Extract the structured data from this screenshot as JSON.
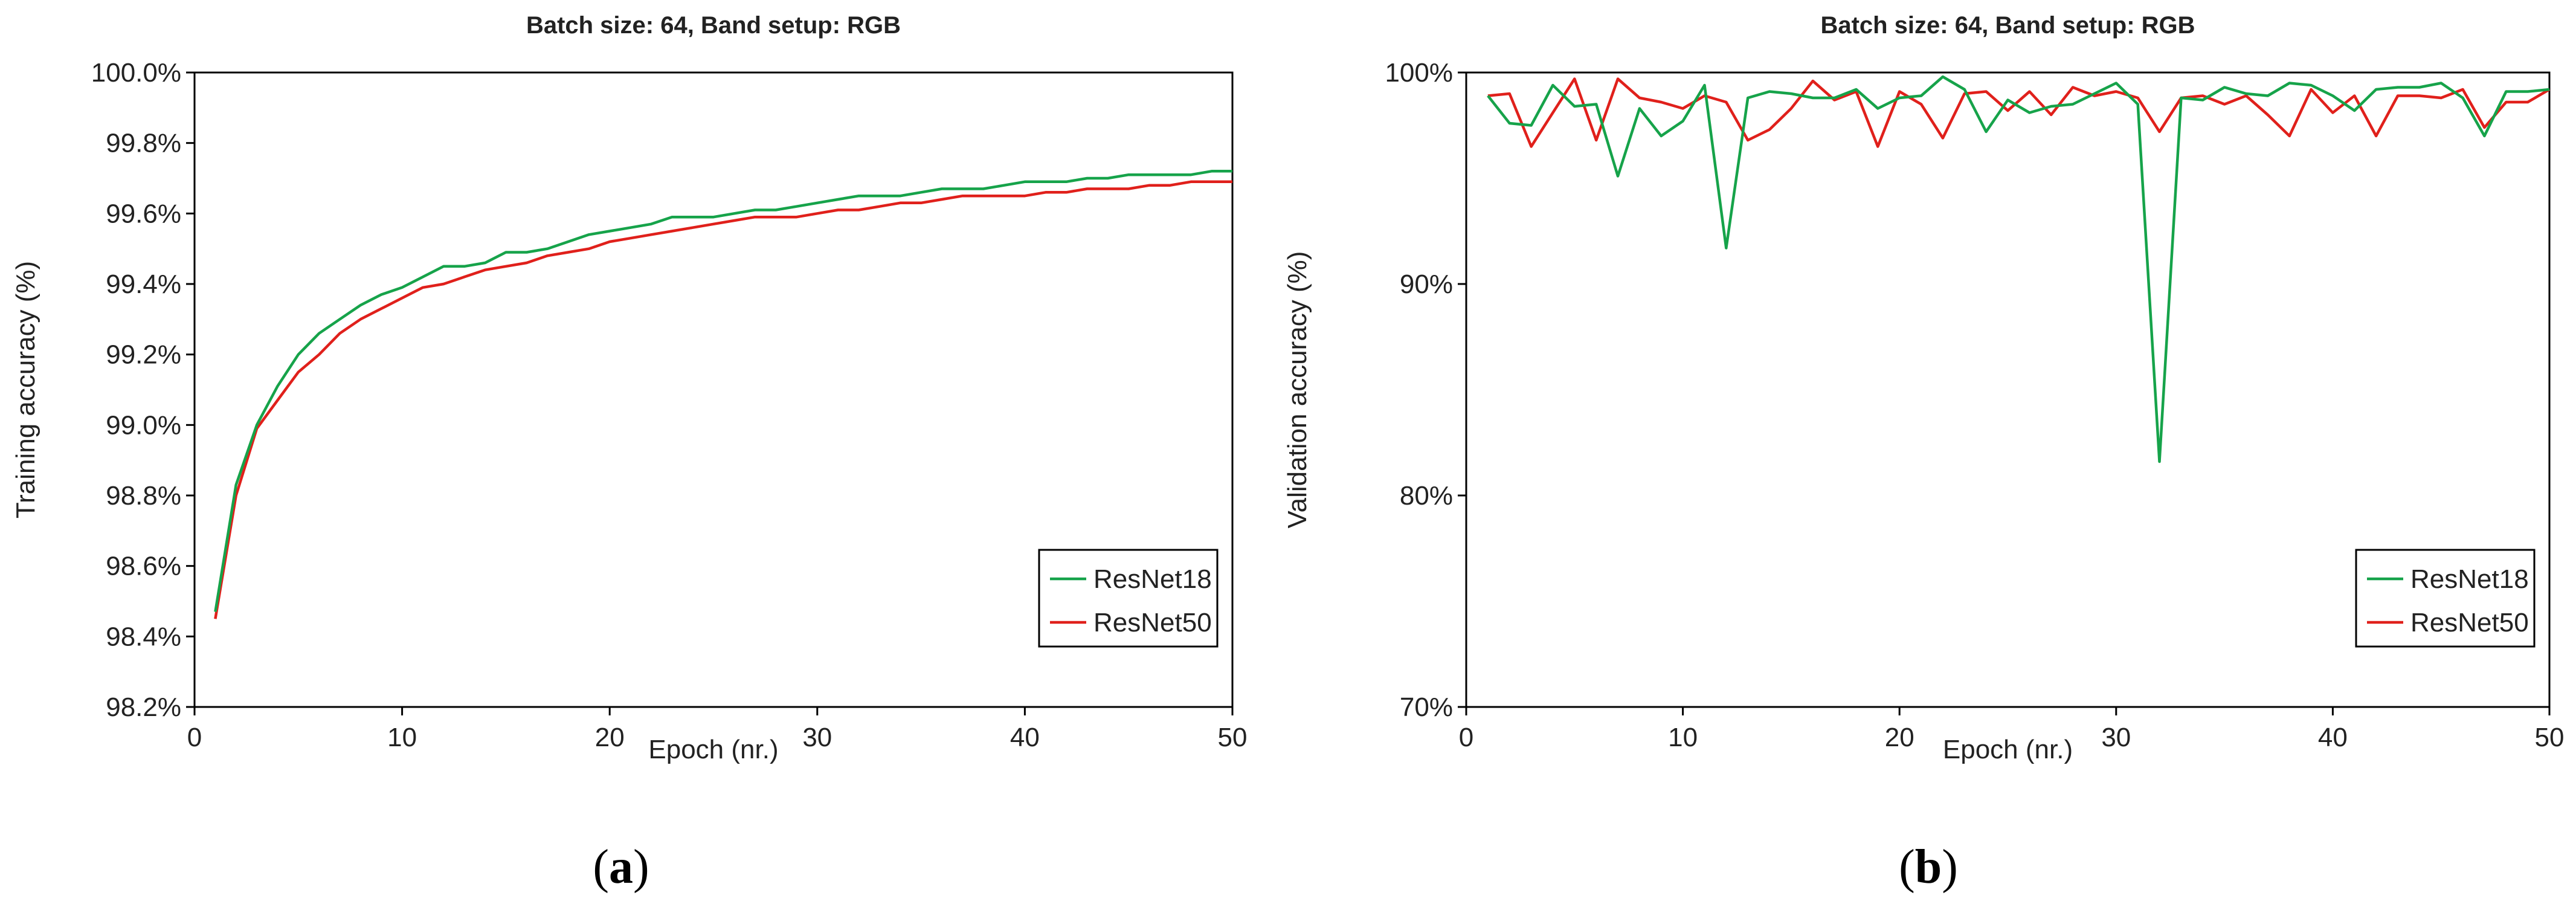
{
  "colors": {
    "ResNet18": "#16a34a",
    "ResNet50": "#e0201b"
  },
  "chart_data": [
    {
      "type": "line",
      "panel_label": "a",
      "title": "Batch size: 64, Band setup: RGB",
      "xlabel": "Epoch (nr.)",
      "ylabel": "Training accuracy (%)",
      "xlim": [
        0,
        50
      ],
      "ylim": [
        98.2,
        100.0
      ],
      "xticks": [
        0,
        10,
        20,
        30,
        40,
        50
      ],
      "yticks": [
        98.2,
        98.4,
        98.6,
        98.8,
        99.0,
        99.2,
        99.4,
        99.6,
        99.8,
        100.0
      ],
      "ytick_labels": [
        "98.2%",
        "98.4%",
        "98.6%",
        "98.8%",
        "99.0%",
        "99.2%",
        "99.4%",
        "99.6%",
        "99.8%",
        "100.0%"
      ],
      "grid": false,
      "legend_position": "bottom-right",
      "x": [
        1,
        2,
        3,
        4,
        5,
        6,
        7,
        8,
        9,
        10,
        11,
        12,
        13,
        14,
        15,
        16,
        17,
        18,
        19,
        20,
        21,
        22,
        23,
        24,
        25,
        26,
        27,
        28,
        29,
        30,
        31,
        32,
        33,
        34,
        35,
        36,
        37,
        38,
        39,
        40,
        41,
        42,
        43,
        44,
        45,
        46,
        47,
        48,
        49,
        50
      ],
      "series": [
        {
          "name": "ResNet18",
          "values": [
            98.47,
            98.83,
            99.0,
            99.11,
            99.2,
            99.26,
            99.3,
            99.34,
            99.37,
            99.39,
            99.42,
            99.45,
            99.45,
            99.46,
            99.49,
            99.49,
            99.5,
            99.52,
            99.54,
            99.55,
            99.56,
            99.57,
            99.59,
            99.59,
            99.59,
            99.6,
            99.61,
            99.61,
            99.62,
            99.63,
            99.64,
            99.65,
            99.65,
            99.65,
            99.66,
            99.67,
            99.67,
            99.67,
            99.68,
            99.69,
            99.69,
            99.69,
            99.7,
            99.7,
            99.71,
            99.71,
            99.71,
            99.71,
            99.72,
            99.72
          ]
        },
        {
          "name": "ResNet50",
          "values": [
            98.45,
            98.8,
            98.99,
            99.07,
            99.15,
            99.2,
            99.26,
            99.3,
            99.33,
            99.36,
            99.39,
            99.4,
            99.42,
            99.44,
            99.45,
            99.46,
            99.48,
            99.49,
            99.5,
            99.52,
            99.53,
            99.54,
            99.55,
            99.56,
            99.57,
            99.58,
            99.59,
            99.59,
            99.59,
            99.6,
            99.61,
            99.61,
            99.62,
            99.63,
            99.63,
            99.64,
            99.65,
            99.65,
            99.65,
            99.65,
            99.66,
            99.66,
            99.67,
            99.67,
            99.67,
            99.68,
            99.68,
            99.69,
            99.69,
            99.69
          ]
        }
      ]
    },
    {
      "type": "line",
      "panel_label": "b",
      "title": "Batch size: 64, Band setup: RGB",
      "xlabel": "Epoch (nr.)",
      "ylabel": "Validation accuracy (%)",
      "xlim": [
        0,
        50
      ],
      "ylim": [
        70,
        100
      ],
      "xticks": [
        0,
        10,
        20,
        30,
        40,
        50
      ],
      "yticks": [
        70,
        80,
        90,
        100
      ],
      "ytick_labels": [
        "70%",
        "80%",
        "90%",
        "100%"
      ],
      "grid": false,
      "legend_position": "bottom-right",
      "x": [
        1,
        2,
        3,
        4,
        5,
        6,
        7,
        8,
        9,
        10,
        11,
        12,
        13,
        14,
        15,
        16,
        17,
        18,
        19,
        20,
        21,
        22,
        23,
        24,
        25,
        26,
        27,
        28,
        29,
        30,
        31,
        32,
        33,
        34,
        35,
        36,
        37,
        38,
        39,
        40,
        41,
        42,
        43,
        44,
        45,
        46,
        47,
        48,
        49,
        50
      ],
      "series": [
        {
          "name": "ResNet18",
          "values": [
            98.9,
            97.6,
            97.5,
            99.4,
            98.4,
            98.5,
            95.1,
            98.3,
            97.0,
            97.7,
            99.4,
            91.7,
            98.8,
            99.1,
            99.0,
            98.8,
            98.8,
            99.2,
            98.3,
            98.8,
            98.9,
            99.8,
            99.2,
            97.2,
            98.7,
            98.1,
            98.4,
            98.5,
            99.0,
            99.5,
            98.5,
            81.6,
            98.8,
            98.7,
            99.3,
            99.0,
            98.9,
            99.5,
            99.4,
            98.9,
            98.2,
            99.2,
            99.3,
            99.3,
            99.5,
            98.8,
            97.0,
            99.1,
            99.1,
            99.2
          ]
        },
        {
          "name": "ResNet50",
          "values": [
            98.9,
            99.0,
            96.5,
            98.1,
            99.7,
            96.8,
            99.7,
            98.8,
            98.6,
            98.3,
            98.9,
            98.6,
            96.8,
            97.3,
            98.3,
            99.6,
            98.7,
            99.1,
            96.5,
            99.1,
            98.5,
            96.9,
            99.0,
            99.1,
            98.2,
            99.1,
            98.0,
            99.3,
            98.9,
            99.1,
            98.8,
            97.2,
            98.8,
            98.9,
            98.5,
            98.9,
            98.0,
            97.0,
            99.2,
            98.1,
            98.9,
            97.0,
            98.9,
            98.9,
            98.8,
            99.2,
            97.4,
            98.6,
            98.6,
            99.2
          ]
        }
      ]
    }
  ]
}
